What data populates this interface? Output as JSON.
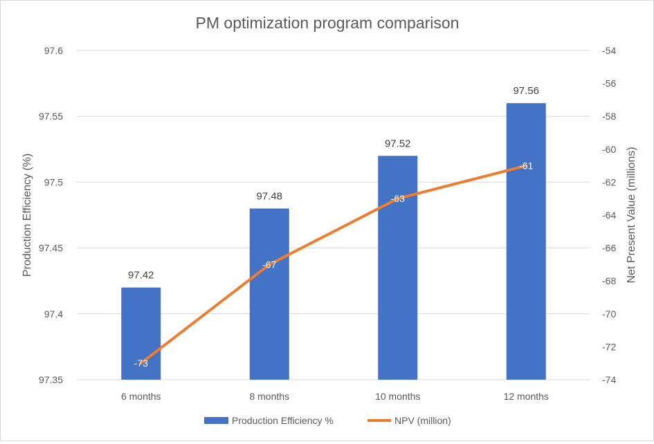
{
  "chart_data": {
    "type": "bar",
    "title": "PM optimization program comparison",
    "categories": [
      "6 months",
      "8 months",
      "10 months",
      "12 months"
    ],
    "series": [
      {
        "name": "Production Efficiency %",
        "type": "bar",
        "axis": "left",
        "color": "#4472c4",
        "values": [
          97.42,
          97.48,
          97.52,
          97.56
        ],
        "labels": [
          "97.42",
          "97.48",
          "97.52",
          "97.56"
        ]
      },
      {
        "name": "NPV (million)",
        "type": "line",
        "axis": "right",
        "color": "#ed7d31",
        "values": [
          -73,
          -67,
          -63,
          -61
        ],
        "labels": [
          "-73",
          "-67",
          "-63",
          "-61"
        ]
      }
    ],
    "ylabel": "Production Efficiency (%)",
    "ylim": [
      97.35,
      97.6
    ],
    "yticks": [
      "97.35",
      "97.4",
      "97.45",
      "97.5",
      "97.55",
      "97.6"
    ],
    "y2label": "Net Present Value (millions)",
    "y2lim": [
      -74,
      -54
    ],
    "y2ticks": [
      "-74",
      "-72",
      "-70",
      "-68",
      "-66",
      "-64",
      "-62",
      "-60",
      "-58",
      "-56",
      "-54"
    ],
    "grid": true,
    "legend": "bottom"
  }
}
